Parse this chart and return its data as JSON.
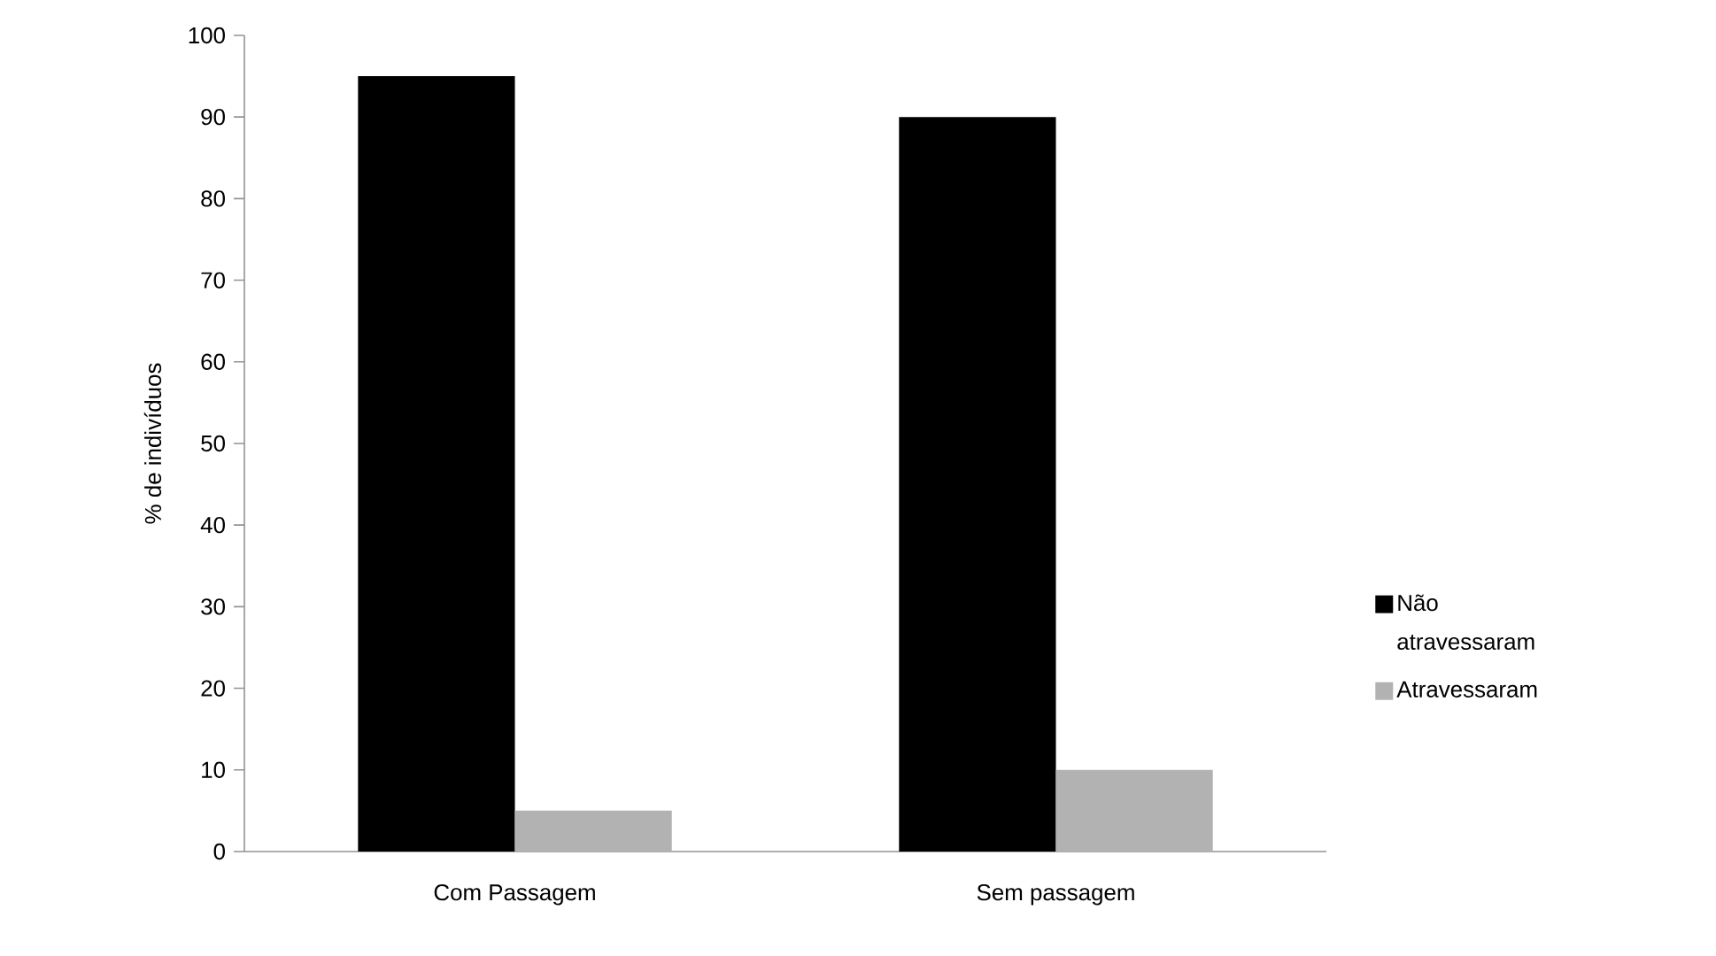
{
  "chart_data": {
    "type": "bar",
    "ylabel": "% de indivíduos",
    "categories": [
      "Com Passagem",
      "Sem passagem"
    ],
    "series": [
      {
        "name": "Não atravessaram",
        "color": "#000000",
        "values": [
          95,
          90
        ]
      },
      {
        "name": "Atravessaram",
        "color": "#b2b2b2",
        "values": [
          5,
          10
        ]
      }
    ],
    "ylim": [
      0,
      100
    ],
    "yticks": [
      0,
      10,
      20,
      30,
      40,
      50,
      60,
      70,
      80,
      90,
      100
    ],
    "legend": "right",
    "grid": false
  }
}
